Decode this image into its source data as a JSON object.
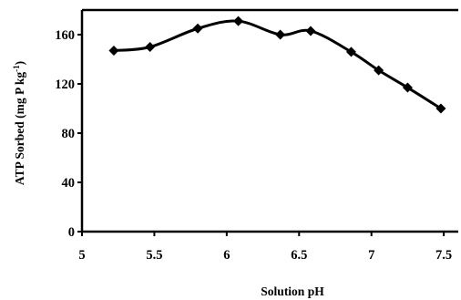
{
  "chart_data": {
    "type": "line",
    "xlabel": "Solution pH",
    "ylabel_main": "ATP Sorbed (mg P kg",
    "ylabel_sup": "-1",
    "ylabel_close": ")",
    "xlim": [
      5,
      7.6
    ],
    "ylim": [
      0,
      180
    ],
    "xticks": [
      5,
      5.5,
      6,
      6.5,
      7,
      7.5
    ],
    "xtick_labels": [
      "5",
      "5.5",
      "6",
      "6.5",
      "7",
      "7.5"
    ],
    "yticks": [
      0,
      40,
      80,
      120,
      160
    ],
    "ytick_labels": [
      "0",
      "40",
      "80",
      "120",
      "160"
    ],
    "grid": false,
    "legend": "none",
    "series": [
      {
        "x": [
          5.22,
          5.47,
          5.8,
          6.08,
          6.37,
          6.58,
          6.86,
          7.05,
          7.25,
          7.48
        ],
        "y": [
          147,
          150,
          165,
          171,
          160,
          163,
          146,
          131,
          117,
          100
        ],
        "color": "#000000",
        "marker": "diamond"
      }
    ]
  }
}
